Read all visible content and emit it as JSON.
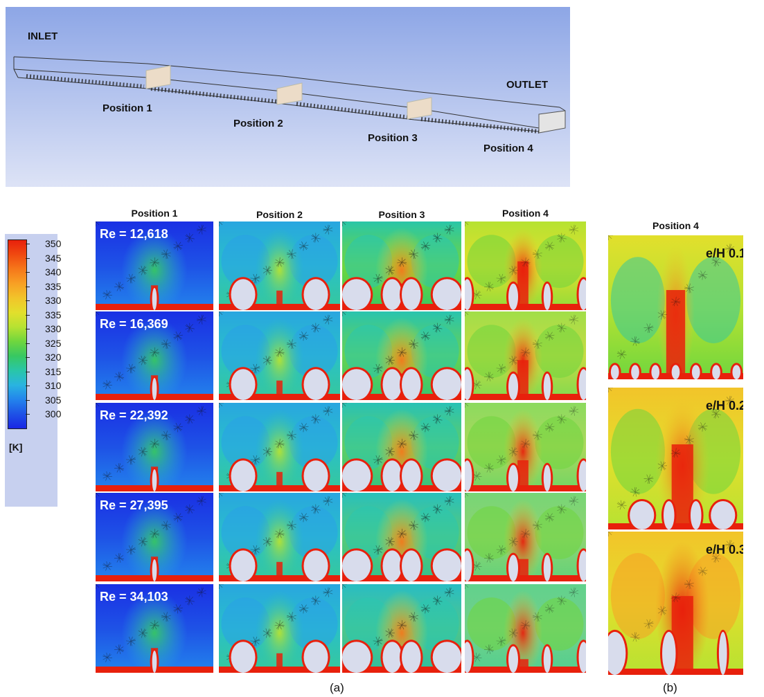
{
  "geometry_panel": {
    "inlet": "INLET",
    "outlet": "OUTLET",
    "positions": [
      "Position 1",
      "Position 2",
      "Position 3",
      "Position 4"
    ]
  },
  "legend": {
    "ticks": [
      "350",
      "345",
      "340",
      "335",
      "330",
      "335",
      "330",
      "325",
      "320",
      "315",
      "310",
      "305",
      "300"
    ],
    "unit": "[K]",
    "colors": [
      "#e8200c",
      "#f04a10",
      "#f6781a",
      "#f8a024",
      "#f2c42a",
      "#e2df2c",
      "#b6e232",
      "#6fd63e",
      "#37c862",
      "#29c6a8",
      "#29b4e0",
      "#2384ec",
      "#1e52e6",
      "#1a26e4"
    ]
  },
  "panel_a": {
    "column_headers": [
      "Position 1",
      "Position 2",
      "Position 3",
      "Position 4"
    ],
    "row_labels": [
      "Re = 12,618",
      "Re = 16,369",
      "Re = 22,392",
      "Re = 27,395",
      "Re = 34,103"
    ],
    "caption": "(a)"
  },
  "panel_b": {
    "header": "Position 4",
    "labels": [
      "e/H 0.1",
      "e/H 0.2",
      "e/H 0.3"
    ],
    "caption": "(b)"
  }
}
